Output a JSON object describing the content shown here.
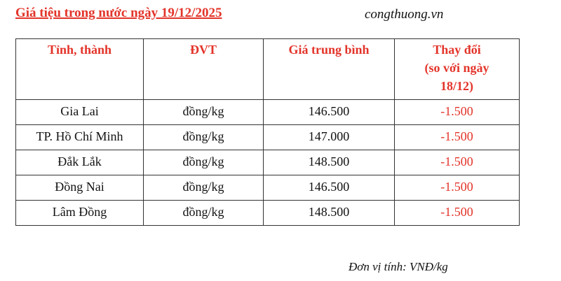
{
  "title": "Giá tiệu trong nước ngày 19/12/2025",
  "source": "congthuong.vn",
  "headers": [
    "Tỉnh, thành",
    "ĐVT",
    "Giá trung bình",
    "Thay đổi",
    "(so với ngày",
    "18/12)"
  ],
  "rows": [
    [
      "Gia Lai",
      "đồng/kg",
      "146.500",
      "-1.500"
    ],
    [
      "TP. Hồ Chí Minh",
      "đồng/kg",
      "147.000",
      "-1.500"
    ],
    [
      "Đắk Lắk",
      "đồng/kg",
      "148.500",
      "-1.500"
    ],
    [
      "Đồng Nai",
      "đồng/kg",
      "146.500",
      "-1.500"
    ],
    [
      "Lâm Đồng",
      "đồng/kg",
      "148.500",
      "-1.500"
    ]
  ],
  "unit": "Đơn vị tính: VNĐ/kg",
  "colors": {
    "accent": "#e3342a"
  }
}
